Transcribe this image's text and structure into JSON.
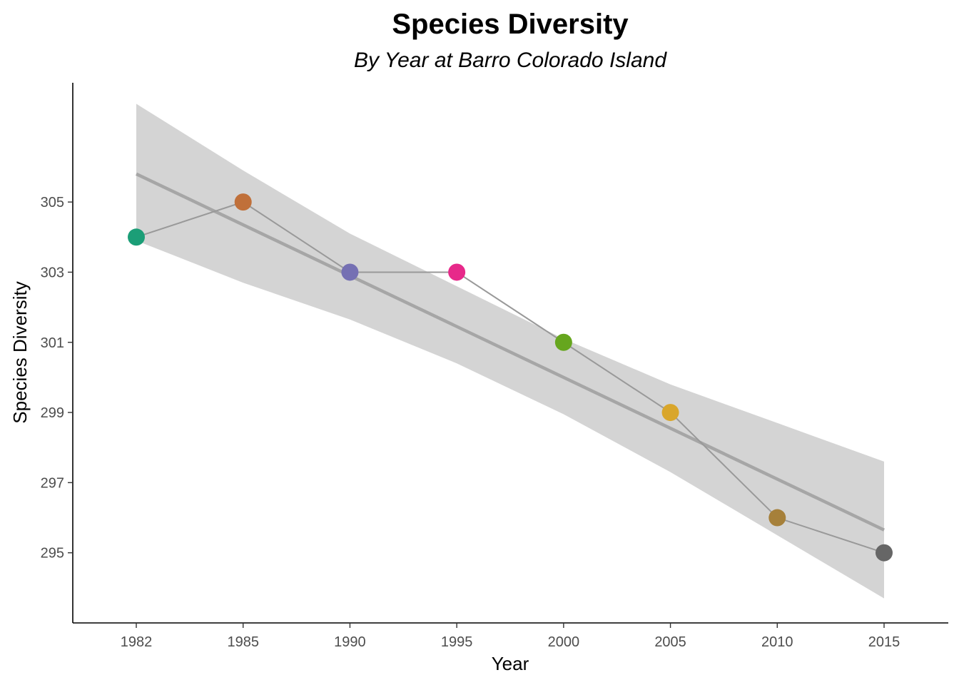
{
  "chart_data": {
    "type": "scatter",
    "title": "Species Diversity",
    "subtitle": "By Year at Barro Colorado Island",
    "xlabel": "Year",
    "ylabel": "Species Diversity",
    "x_ticks": [
      "1982",
      "1985",
      "1990",
      "1995",
      "2000",
      "2005",
      "2010",
      "2015"
    ],
    "y_ticks": [
      "305",
      "303",
      "301",
      "299",
      "297",
      "295"
    ],
    "ylim": [
      293,
      308.4
    ],
    "grid": false,
    "legend": "none",
    "points": [
      {
        "x": "1982",
        "y": 304,
        "color": "#1b9e77"
      },
      {
        "x": "1985",
        "y": 305,
        "color": "#c0703a"
      },
      {
        "x": "1990",
        "y": 303,
        "color": "#7570b3"
      },
      {
        "x": "1995",
        "y": 303,
        "color": "#e7298a"
      },
      {
        "x": "2000",
        "y": 301,
        "color": "#66a61e"
      },
      {
        "x": "2005",
        "y": 299,
        "color": "#d9a62b"
      },
      {
        "x": "2010",
        "y": 296,
        "color": "#a6803a"
      },
      {
        "x": "2015",
        "y": 295,
        "color": "#666666"
      }
    ],
    "connecting_line_color": "#999999",
    "trend_line": {
      "type": "linear fit",
      "start": {
        "x": "1982",
        "y": 305.8
      },
      "end": {
        "x": "2015",
        "y": 295.65
      },
      "color": "#a6a6a6"
    },
    "confidence_band": {
      "color": "#d4d4d4",
      "upper": [
        307.8,
        305.9,
        304.1,
        302.6,
        301.1,
        299.8,
        298.7,
        297.6
      ],
      "lower": [
        303.9,
        302.7,
        301.65,
        300.4,
        298.95,
        297.3,
        295.5,
        293.7
      ]
    }
  }
}
